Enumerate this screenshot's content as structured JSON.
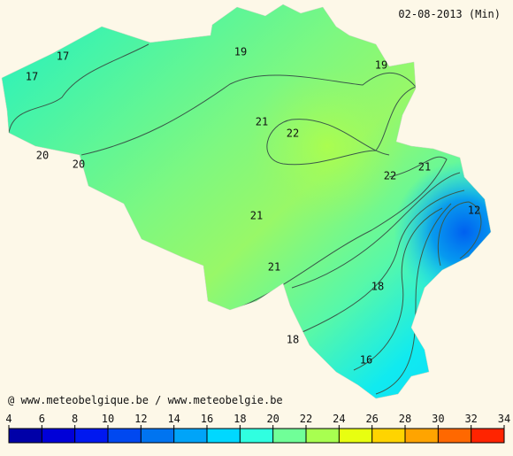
{
  "header": {
    "title": "02-08-2013 (Min)"
  },
  "credit": "@ www.meteobelgique.be / www.meteobelgie.be",
  "contour_labels": [
    17,
    17,
    19,
    19,
    20,
    20,
    21,
    22,
    22,
    21,
    21,
    12,
    21,
    18,
    18,
    16
  ],
  "colorbar": {
    "ticks": [
      4,
      6,
      8,
      10,
      12,
      14,
      16,
      18,
      20,
      22,
      24,
      26,
      28,
      30,
      32,
      34
    ],
    "colors": [
      "#0000a8",
      "#0000d8",
      "#0018f0",
      "#0048f0",
      "#0074f0",
      "#00a4f8",
      "#00d8ff",
      "#30ffe0",
      "#70ff98",
      "#a8ff50",
      "#e8ff10",
      "#ffd400",
      "#ffa400",
      "#ff6800",
      "#ff2400"
    ]
  }
}
